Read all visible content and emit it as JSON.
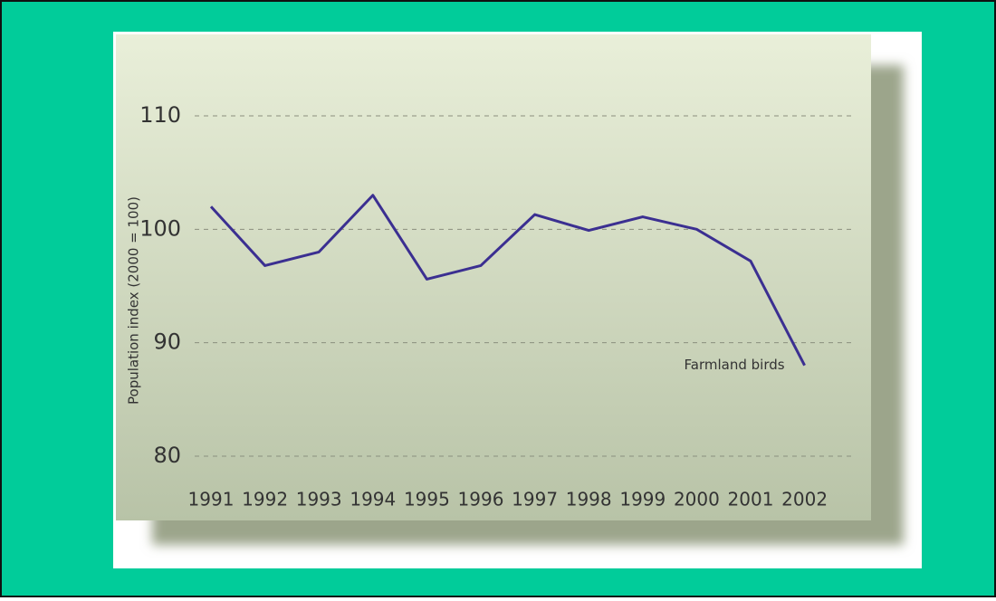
{
  "chart_data": {
    "type": "line",
    "y_label": "Population index (2000 = 100)",
    "categories": [
      "1991",
      "1992",
      "1993",
      "1994",
      "1995",
      "1996",
      "1997",
      "1998",
      "1999",
      "2000",
      "2001",
      "2002"
    ],
    "series": [
      {
        "name": "Farmland birds",
        "color": "#3b2f91",
        "values": [
          102.0,
          96.8,
          98.0,
          103.0,
          95.6,
          96.8,
          101.3,
          99.9,
          101.1,
          100.0,
          97.2,
          88.0
        ]
      }
    ],
    "ylim": [
      80,
      110
    ],
    "yticks": [
      80,
      90,
      100,
      110
    ],
    "grid": true
  }
}
